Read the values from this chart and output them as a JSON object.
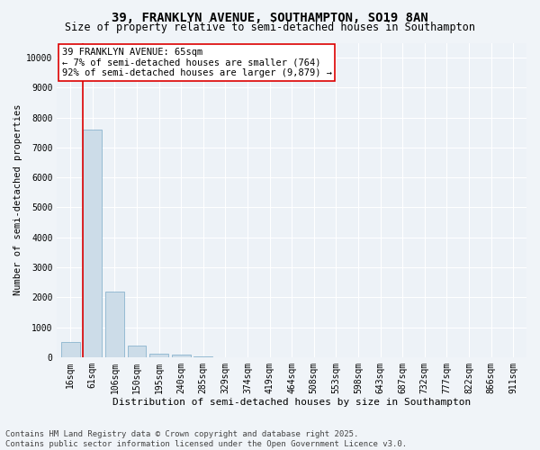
{
  "title1": "39, FRANKLYN AVENUE, SOUTHAMPTON, SO19 8AN",
  "title2": "Size of property relative to semi-detached houses in Southampton",
  "xlabel": "Distribution of semi-detached houses by size in Southampton",
  "ylabel": "Number of semi-detached properties",
  "categories": [
    "16sqm",
    "61sqm",
    "106sqm",
    "150sqm",
    "195sqm",
    "240sqm",
    "285sqm",
    "329sqm",
    "374sqm",
    "419sqm",
    "464sqm",
    "508sqm",
    "553sqm",
    "598sqm",
    "643sqm",
    "687sqm",
    "732sqm",
    "777sqm",
    "822sqm",
    "866sqm",
    "911sqm"
  ],
  "values": [
    500,
    7600,
    2200,
    400,
    120,
    75,
    15,
    8,
    5,
    3,
    2,
    1,
    1,
    0,
    0,
    0,
    0,
    0,
    0,
    0,
    0
  ],
  "bar_color": "#ccdce8",
  "bar_edge_color": "#7aaac8",
  "bar_linewidth": 0.5,
  "vline_x": 0.57,
  "vline_color": "#dd0000",
  "vline_linewidth": 1.2,
  "annotation_text": "39 FRANKLYN AVENUE: 65sqm\n← 7% of semi-detached houses are smaller (764)\n92% of semi-detached houses are larger (9,879) →",
  "annotation_box_color": "#ffffff",
  "annotation_box_edge_color": "#dd0000",
  "ylim": [
    0,
    10500
  ],
  "yticks": [
    0,
    1000,
    2000,
    3000,
    4000,
    5000,
    6000,
    7000,
    8000,
    9000,
    10000
  ],
  "bg_color": "#f0f4f8",
  "plot_bg_color": "#edf2f7",
  "grid_color": "#ffffff",
  "footer": "Contains HM Land Registry data © Crown copyright and database right 2025.\nContains public sector information licensed under the Open Government Licence v3.0.",
  "title1_fontsize": 10,
  "title2_fontsize": 8.5,
  "xlabel_fontsize": 8,
  "ylabel_fontsize": 7.5,
  "tick_fontsize": 7,
  "annotation_fontsize": 7.5,
  "footer_fontsize": 6.5
}
